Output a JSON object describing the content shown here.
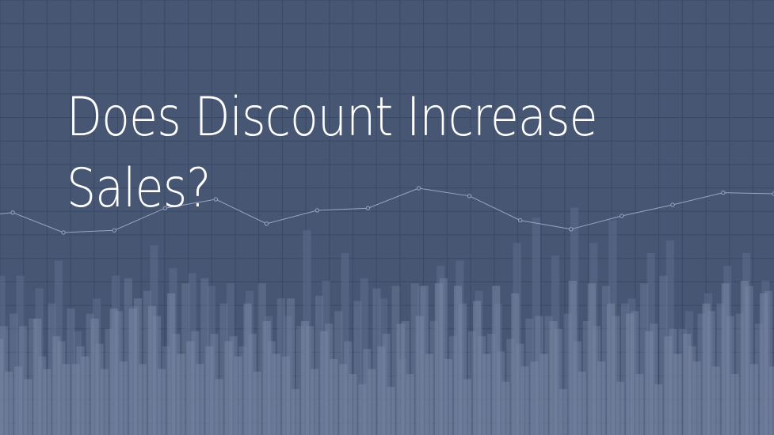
{
  "title": {
    "line1": "Does Discount Increase",
    "line2": "Sales?"
  },
  "colors": {
    "background": "#465673",
    "grid": "#3a4a65",
    "bars_back": "#5d6d8a",
    "bars_front": "#7986a3",
    "line": "#9aa6bf",
    "text": "#ffffff"
  },
  "chart_data": {
    "type": "bar",
    "decorative": true,
    "series": [
      {
        "values": [
          0.35,
          0.24,
          0.43,
          0.36,
          0.25,
          0.43,
          0.47,
          0.47,
          0.48,
          0.53,
          0.34,
          0.32,
          0.34,
          0.49,
          0.42,
          0.28,
          0.42,
          0.38,
          0.25,
          0.17,
          0.32,
          0.41,
          0.44,
          0.57,
          0.56,
          0.5,
          0.56,
          0.53,
          0.26,
          0.42,
          0.58,
          0.57,
          0.49,
          0.45,
          0.38,
          0.36,
          0.37,
          0.49,
          0.57,
          0.58,
          0.53
        ]
      },
      {
        "values": [
          0.22,
          0.19,
          0.23,
          0.25,
          0.28,
          0.23,
          0.26,
          0.25,
          0.23,
          0.29,
          0.25,
          0.19,
          0.28,
          0.22,
          0.29,
          0.15,
          0.23,
          0.27,
          0.21,
          0.23,
          0.16,
          0.21,
          0.29,
          0.27,
          0.19,
          0.29,
          0.18,
          0.24,
          0.29,
          0.15,
          0.22,
          0.26,
          0.18,
          0.21,
          0.17,
          0.29,
          0.26,
          0.24,
          0.21,
          0.25,
          0.24
        ]
      },
      {
        "values": [
          0.4,
          0.4,
          0.28,
          0.34,
          0.32,
          0.33,
          0.46,
          0.51,
          0.44,
          0.37,
          0.38,
          0.37,
          0.36,
          0.37,
          0.34,
          0.51,
          0.4,
          0.41,
          0.34,
          0.31,
          0.37,
          0.42,
          0.56,
          0.59,
          0.49,
          0.36,
          0.3,
          0.33,
          0.44,
          0.39,
          0.34,
          0.4,
          0.44,
          0.46,
          0.41,
          0.39,
          0.32,
          0.46,
          0.44,
          0.56,
          0.54
        ]
      },
      {
        "values": [
          0.45,
          0.43,
          0.49,
          0.47,
          0.45,
          0.39,
          0.59,
          0.54,
          0.32,
          0.57,
          0.59,
          0.49,
          0.32,
          0.57,
          0.51,
          0.4,
          0.52,
          0.46,
          0.5,
          0.55,
          0.56,
          0.57,
          0.42,
          0.36,
          0.38,
          0.37,
          0.35,
          0.43,
          0.44,
          0.45,
          0.42,
          0.56,
          0.49,
          0.57,
          0.6,
          0.39,
          0.45,
          0.49,
          0.45,
          0.41,
          0.54
        ]
      },
      {
        "name": "",
        "values": [
          0.6,
          0.6,
          0.55,
          0.66,
          0.38,
          0.51,
          0.6,
          0.48,
          0.72,
          0.63,
          0.61,
          0.56,
          0.57,
          0.54,
          0.44,
          0.44,
          0.78,
          0.58,
          0.69,
          0.59,
          0.51,
          0.27,
          0.56,
          0.64,
          0.66,
          0.54,
          0.49,
          0.73,
          0.83,
          0.68,
          0.87,
          0.73,
          0.82,
          0.51,
          0.69,
          0.74,
          0.46,
          0.53,
          0.64,
          0.69,
          0.58
        ]
      }
    ],
    "line": [
      0.73,
      0.78,
      0.6,
      0.62,
      0.82,
      0.9,
      0.68,
      0.8,
      0.82,
      1.0,
      0.93,
      0.71,
      0.63,
      0.75,
      0.85,
      0.96,
      0.95
    ]
  }
}
